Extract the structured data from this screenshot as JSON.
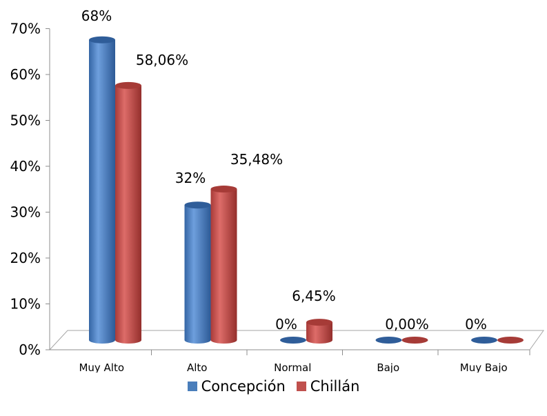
{
  "chart_data": {
    "type": "bar",
    "categories": [
      "Muy Alto",
      "Alto",
      "Normal",
      "Bajo",
      "Muy Bajo"
    ],
    "series": [
      {
        "name": "Concepción",
        "values": [
          68,
          32,
          0,
          0,
          0
        ],
        "labels": [
          "68%",
          "32%",
          "0%",
          "",
          "0%"
        ],
        "color": "#4a7ebb"
      },
      {
        "name": "Chillán",
        "values": [
          58.06,
          35.48,
          6.45,
          0,
          0
        ],
        "labels": [
          "58,06%",
          "35,48%",
          "6,45%",
          "0,00%",
          ""
        ],
        "color": "#c0504d"
      }
    ],
    "yticks": [
      "0%",
      "10%",
      "20%",
      "30%",
      "40%",
      "50%",
      "60%",
      "70%"
    ],
    "ylim": [
      0,
      70
    ],
    "legend_position": "bottom",
    "grid": false
  }
}
